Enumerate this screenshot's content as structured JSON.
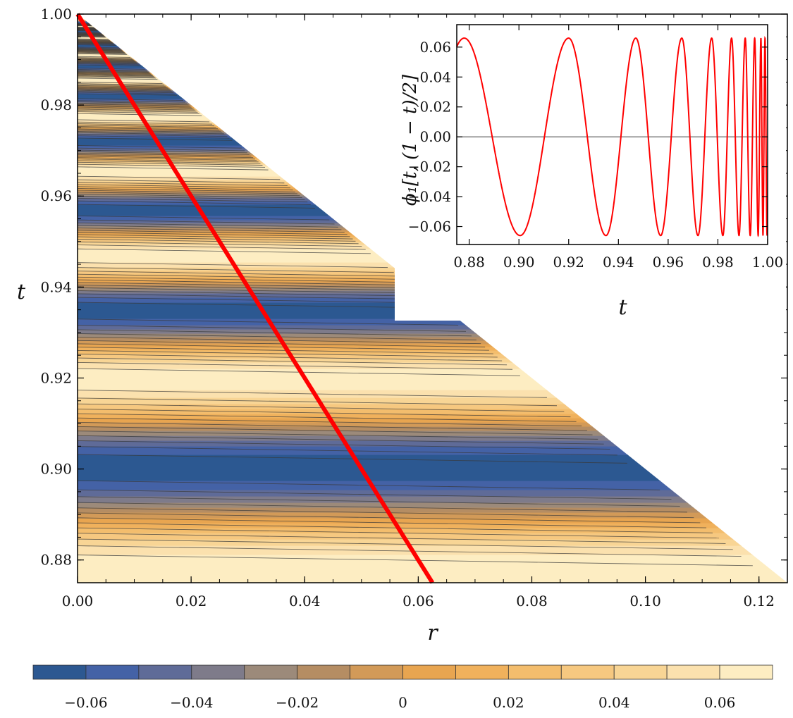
{
  "chart_data": [
    {
      "type": "heatmap",
      "title": "",
      "xlabel": "r",
      "ylabel": "t",
      "xlim": [
        0,
        0.125
      ],
      "ylim": [
        0.875,
        1.0
      ],
      "x_ticks": [
        0.0,
        0.02,
        0.04,
        0.06,
        0.08,
        0.1,
        0.12
      ],
      "x_tick_labels": [
        "0.00",
        "0.02",
        "0.04",
        "0.06",
        "0.08",
        "0.10",
        "0.12"
      ],
      "y_ticks": [
        0.88,
        0.9,
        0.92,
        0.94,
        0.96,
        0.98,
        1.0
      ],
      "y_tick_labels": [
        "0.88",
        "0.90",
        "0.92",
        "0.94",
        "0.96",
        "0.98",
        "1.00"
      ],
      "domain": "triangle r <= 1 - t",
      "field": "phi_1(t, r), contour bands oscillating in t with period shrinking toward t = 1",
      "line": {
        "name": "r = (1 - t)/2",
        "color": "#ff0000",
        "x": [
          0.0,
          0.0625
        ],
        "y": [
          1.0,
          0.875
        ]
      }
    },
    {
      "type": "line",
      "title": "",
      "xlabel": "t",
      "ylabel": "ϕ₁[t, (1 − t)/2]",
      "xlim": [
        0.875,
        1.0
      ],
      "ylim": [
        -0.072,
        0.075
      ],
      "x_ticks": [
        0.88,
        0.9,
        0.92,
        0.94,
        0.96,
        0.98,
        1.0
      ],
      "x_tick_labels": [
        "0.88",
        "0.90",
        "0.92",
        "0.94",
        "0.96",
        "0.98",
        "1.00"
      ],
      "y_ticks": [
        -0.06,
        -0.04,
        -0.02,
        0.0,
        0.02,
        0.04,
        0.06
      ],
      "y_tick_labels": [
        "−0.06",
        "−0.04",
        "−0.02",
        "0.00",
        "0.02",
        "0.04",
        "0.06"
      ],
      "series": [
        {
          "name": "phi_1 along r = (1-t)/2",
          "color": "#ff0000",
          "amplitude": 0.066,
          "extrema_t": [
            0.878,
            0.9005,
            0.92,
            0.935,
            0.947,
            0.957,
            0.9655,
            0.972,
            0.9775,
            0.982,
            0.9855,
            0.9885,
            0.991,
            0.993,
            0.9948,
            0.9962,
            0.9973
          ]
        }
      ]
    },
    {
      "type": "colorbar",
      "bounds": [
        -0.07,
        -0.06,
        -0.05,
        -0.04,
        -0.03,
        -0.02,
        -0.01,
        0.0,
        0.01,
        0.02,
        0.03,
        0.04,
        0.05,
        0.06,
        0.07
      ],
      "colors": [
        "#2c5891",
        "#4462a6",
        "#5f6b98",
        "#7e7b8a",
        "#9c8a7a",
        "#b58d63",
        "#d29a58",
        "#e8a550",
        "#f0b15c",
        "#f3bd6d",
        "#f6c880",
        "#f8d595",
        "#fbe1ae",
        "#fdedc2"
      ],
      "tick_values": [
        -0.06,
        -0.04,
        -0.02,
        0.0,
        0.02,
        0.04,
        0.06
      ],
      "tick_labels": [
        "−0.06",
        "−0.04",
        "−0.02",
        "0",
        "0.02",
        "0.04",
        "0.06"
      ]
    }
  ]
}
